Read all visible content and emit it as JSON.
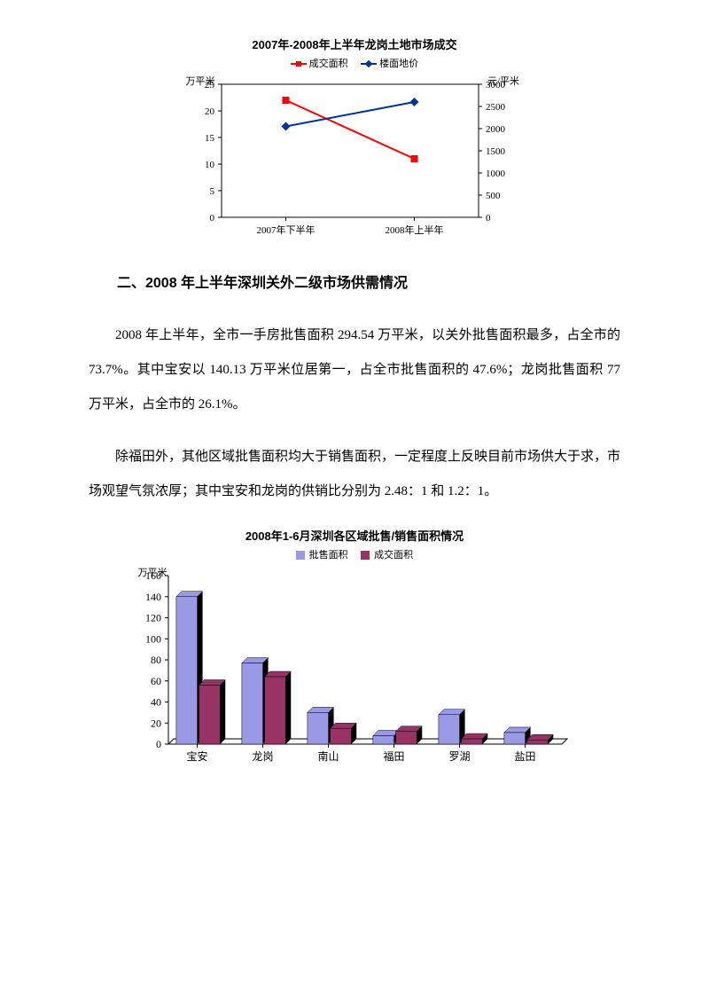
{
  "chart1": {
    "type": "line",
    "title": "2007年-2008年上半年龙岗土地市场成交",
    "legend": [
      {
        "label": "成交面积",
        "color": "#ff0000",
        "marker": "square"
      },
      {
        "label": "楼面地价",
        "color": "#003399",
        "marker": "diamond"
      }
    ],
    "y_left_label": "万平米",
    "y_right_label": "元/平米",
    "categories": [
      "2007年下半年",
      "2008年上半年"
    ],
    "series1": {
      "values": [
        22,
        11
      ],
      "color": "#ff0000",
      "marker": "square"
    },
    "series2": {
      "values": [
        2050,
        2600
      ],
      "color": "#003399",
      "marker": "diamond"
    },
    "y_left": {
      "min": 0,
      "max": 25,
      "step": 5
    },
    "y_right": {
      "min": 0,
      "max": 3000,
      "step": 500
    },
    "axis_color": "#000000",
    "grid": false,
    "background_color": "#ffffff",
    "title_fontsize": 13,
    "label_fontsize": 11,
    "tick_fontsize": 11
  },
  "heading": "二、2008 年上半年深圳关外二级市场供需情况",
  "para1": "2008 年上半年，全市一手房批售面积 294.54 万平米，以关外批售面积最多，占全市的 73.7%。其中宝安以 140.13 万平米位居第一，占全市批售面积的 47.6%；龙岗批售面积 77 万平米，占全市的 26.1%。",
  "para2": "除福田外，其他区域批售面积均大于销售面积，一定程度上反映目前市场供大于求，市场观望气氛浓厚；其中宝安和龙岗的供销比分别为 2.48：1 和 1.2：1。",
  "chart2": {
    "type": "bar",
    "title": "2008年1-6月深圳各区域批售/销售面积情况",
    "legend": [
      {
        "label": "批售面积",
        "color": "#9999e6"
      },
      {
        "label": "成交面积",
        "color": "#993366"
      }
    ],
    "y_label": "万平米",
    "categories": [
      "宝安",
      "龙岗",
      "南山",
      "福田",
      "罗湖",
      "盐田"
    ],
    "series1": {
      "values": [
        140,
        77,
        30,
        8,
        28,
        11
      ],
      "color": "#9999e6",
      "side_color": "#000000"
    },
    "series2": {
      "values": [
        56,
        64,
        15,
        12,
        5,
        4
      ],
      "color": "#993366",
      "side_color": "#000000"
    },
    "y": {
      "min": 0,
      "max": 160,
      "step": 20
    },
    "axis_color": "#000000",
    "grid": false,
    "background_color": "#ffffff",
    "bar_width": 0.32,
    "title_fontsize": 13,
    "label_fontsize": 11,
    "tick_fontsize": 12,
    "is_3d": true,
    "depth": 6
  }
}
